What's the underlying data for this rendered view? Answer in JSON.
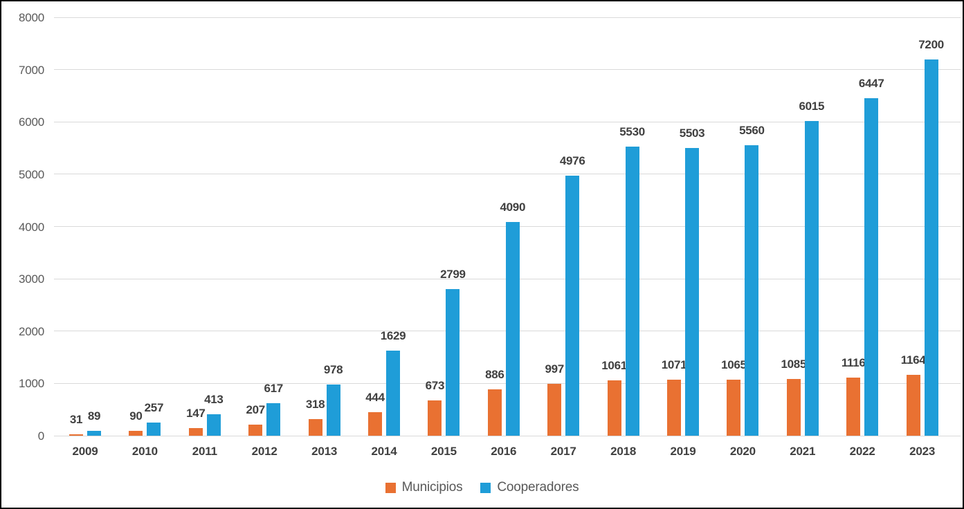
{
  "chart_data": {
    "type": "bar",
    "title": "",
    "xlabel": "",
    "ylabel": "",
    "categories": [
      "2009",
      "2010",
      "2011",
      "2012",
      "2013",
      "2014",
      "2015",
      "2016",
      "2017",
      "2018",
      "2019",
      "2020",
      "2021",
      "2022",
      "2023"
    ],
    "series": [
      {
        "name": "Municipios",
        "color": "#E97132",
        "values": [
          31,
          90,
          147,
          207,
          318,
          444,
          673,
          886,
          997,
          1061,
          1071,
          1065,
          1085,
          1116,
          1164
        ]
      },
      {
        "name": "Cooperadores",
        "color": "#1F9DD8",
        "values": [
          89,
          257,
          413,
          617,
          978,
          1629,
          2799,
          4090,
          4976,
          5530,
          5503,
          5560,
          6015,
          6447,
          7200
        ]
      }
    ],
    "ylim": [
      0,
      8000
    ],
    "ytick_step": 1000,
    "ytick_labels": [
      "0",
      "1000",
      "2000",
      "3000",
      "4000",
      "5000",
      "6000",
      "7000",
      "8000"
    ],
    "grid": "horizontal",
    "data_labels": "outside-end",
    "legend_position": "bottom"
  },
  "colors": {
    "background": "#FFFFFF",
    "border": "#000000",
    "gridline": "#D9D9D9",
    "axis_text": "#595959",
    "data_label_text": "#404040"
  }
}
